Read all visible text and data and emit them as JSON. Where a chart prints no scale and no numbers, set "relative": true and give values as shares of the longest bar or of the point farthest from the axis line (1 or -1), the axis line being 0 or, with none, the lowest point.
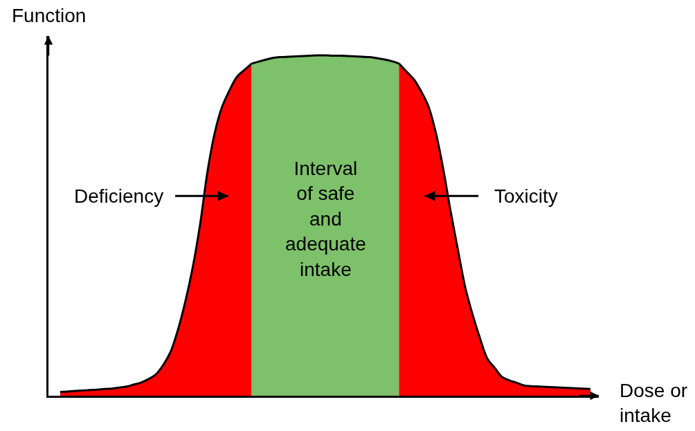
{
  "chart_data": {
    "type": "area",
    "relative": true,
    "ylabel": "Function",
    "xlabel": "Dose or intake",
    "categories": [
      null,
      null,
      null,
      null,
      null,
      null,
      null,
      null,
      null,
      null,
      null,
      null,
      null,
      null,
      null,
      null,
      null,
      null,
      null,
      null,
      null,
      null,
      null,
      null,
      null,
      null,
      null,
      null,
      null,
      null,
      null,
      null,
      null,
      null,
      null,
      null,
      null,
      null,
      null,
      null,
      null,
      null,
      null,
      null,
      null,
      null,
      null,
      null,
      null,
      null,
      null,
      null,
      null,
      null,
      null,
      null,
      null,
      null,
      null,
      null,
      null,
      null,
      null,
      null,
      null,
      null,
      null,
      null,
      null,
      null,
      null,
      null,
      null
    ],
    "series": [
      {
        "name": "Deficiency",
        "color": "#fe0000",
        "values": [
          0.011,
          0.012,
          0.014,
          0.015,
          0.017,
          0.018,
          0.02,
          0.021,
          0.024,
          0.027,
          0.033,
          0.039,
          0.049,
          0.063,
          0.091,
          0.13,
          0.195,
          0.278,
          0.378,
          0.504,
          0.659,
          0.774,
          0.85,
          0.898,
          0.937,
          0.957,
          0.976,
          null,
          null,
          null,
          null,
          null,
          null,
          null,
          null,
          null,
          null,
          null,
          null,
          null,
          null,
          null,
          null,
          null,
          null,
          null,
          null,
          null,
          null,
          null,
          null,
          null,
          null,
          null,
          null,
          null,
          null,
          null,
          null,
          null,
          null,
          null,
          null,
          null,
          null,
          null,
          null,
          null,
          null,
          null,
          null,
          null,
          null
        ]
      },
      {
        "name": "Interval of safe and adequate intake",
        "color": "#7dc16a",
        "values": [
          null,
          null,
          null,
          null,
          null,
          null,
          null,
          null,
          null,
          null,
          null,
          null,
          null,
          null,
          null,
          null,
          null,
          null,
          null,
          null,
          null,
          null,
          null,
          null,
          null,
          null,
          0.976,
          0.982,
          0.988,
          0.993,
          0.995,
          0.996,
          0.997,
          0.998,
          0.999,
          1.0,
          1.0,
          0.999,
          0.999,
          0.998,
          0.997,
          0.996,
          0.995,
          0.992,
          0.988,
          0.983,
          0.976,
          null,
          null,
          null,
          null,
          null,
          null,
          null,
          null,
          null,
          null,
          null,
          null,
          null,
          null,
          null,
          null,
          null,
          null,
          null,
          null,
          null,
          null,
          null,
          null,
          null,
          null
        ]
      },
      {
        "name": "Toxicity",
        "color": "#fe0000",
        "values": [
          null,
          null,
          null,
          null,
          null,
          null,
          null,
          null,
          null,
          null,
          null,
          null,
          null,
          null,
          null,
          null,
          null,
          null,
          null,
          null,
          null,
          null,
          null,
          null,
          null,
          null,
          null,
          null,
          null,
          null,
          null,
          null,
          null,
          null,
          null,
          null,
          null,
          null,
          null,
          null,
          null,
          null,
          null,
          null,
          null,
          null,
          0.976,
          0.953,
          0.93,
          0.895,
          0.85,
          0.773,
          0.667,
          0.543,
          0.429,
          0.318,
          0.238,
          0.169,
          0.109,
          0.082,
          0.055,
          0.045,
          0.038,
          0.03,
          0.028,
          0.027,
          0.026,
          0.025,
          0.024,
          0.023,
          0.022,
          0.021,
          0.02
        ]
      }
    ]
  }
}
